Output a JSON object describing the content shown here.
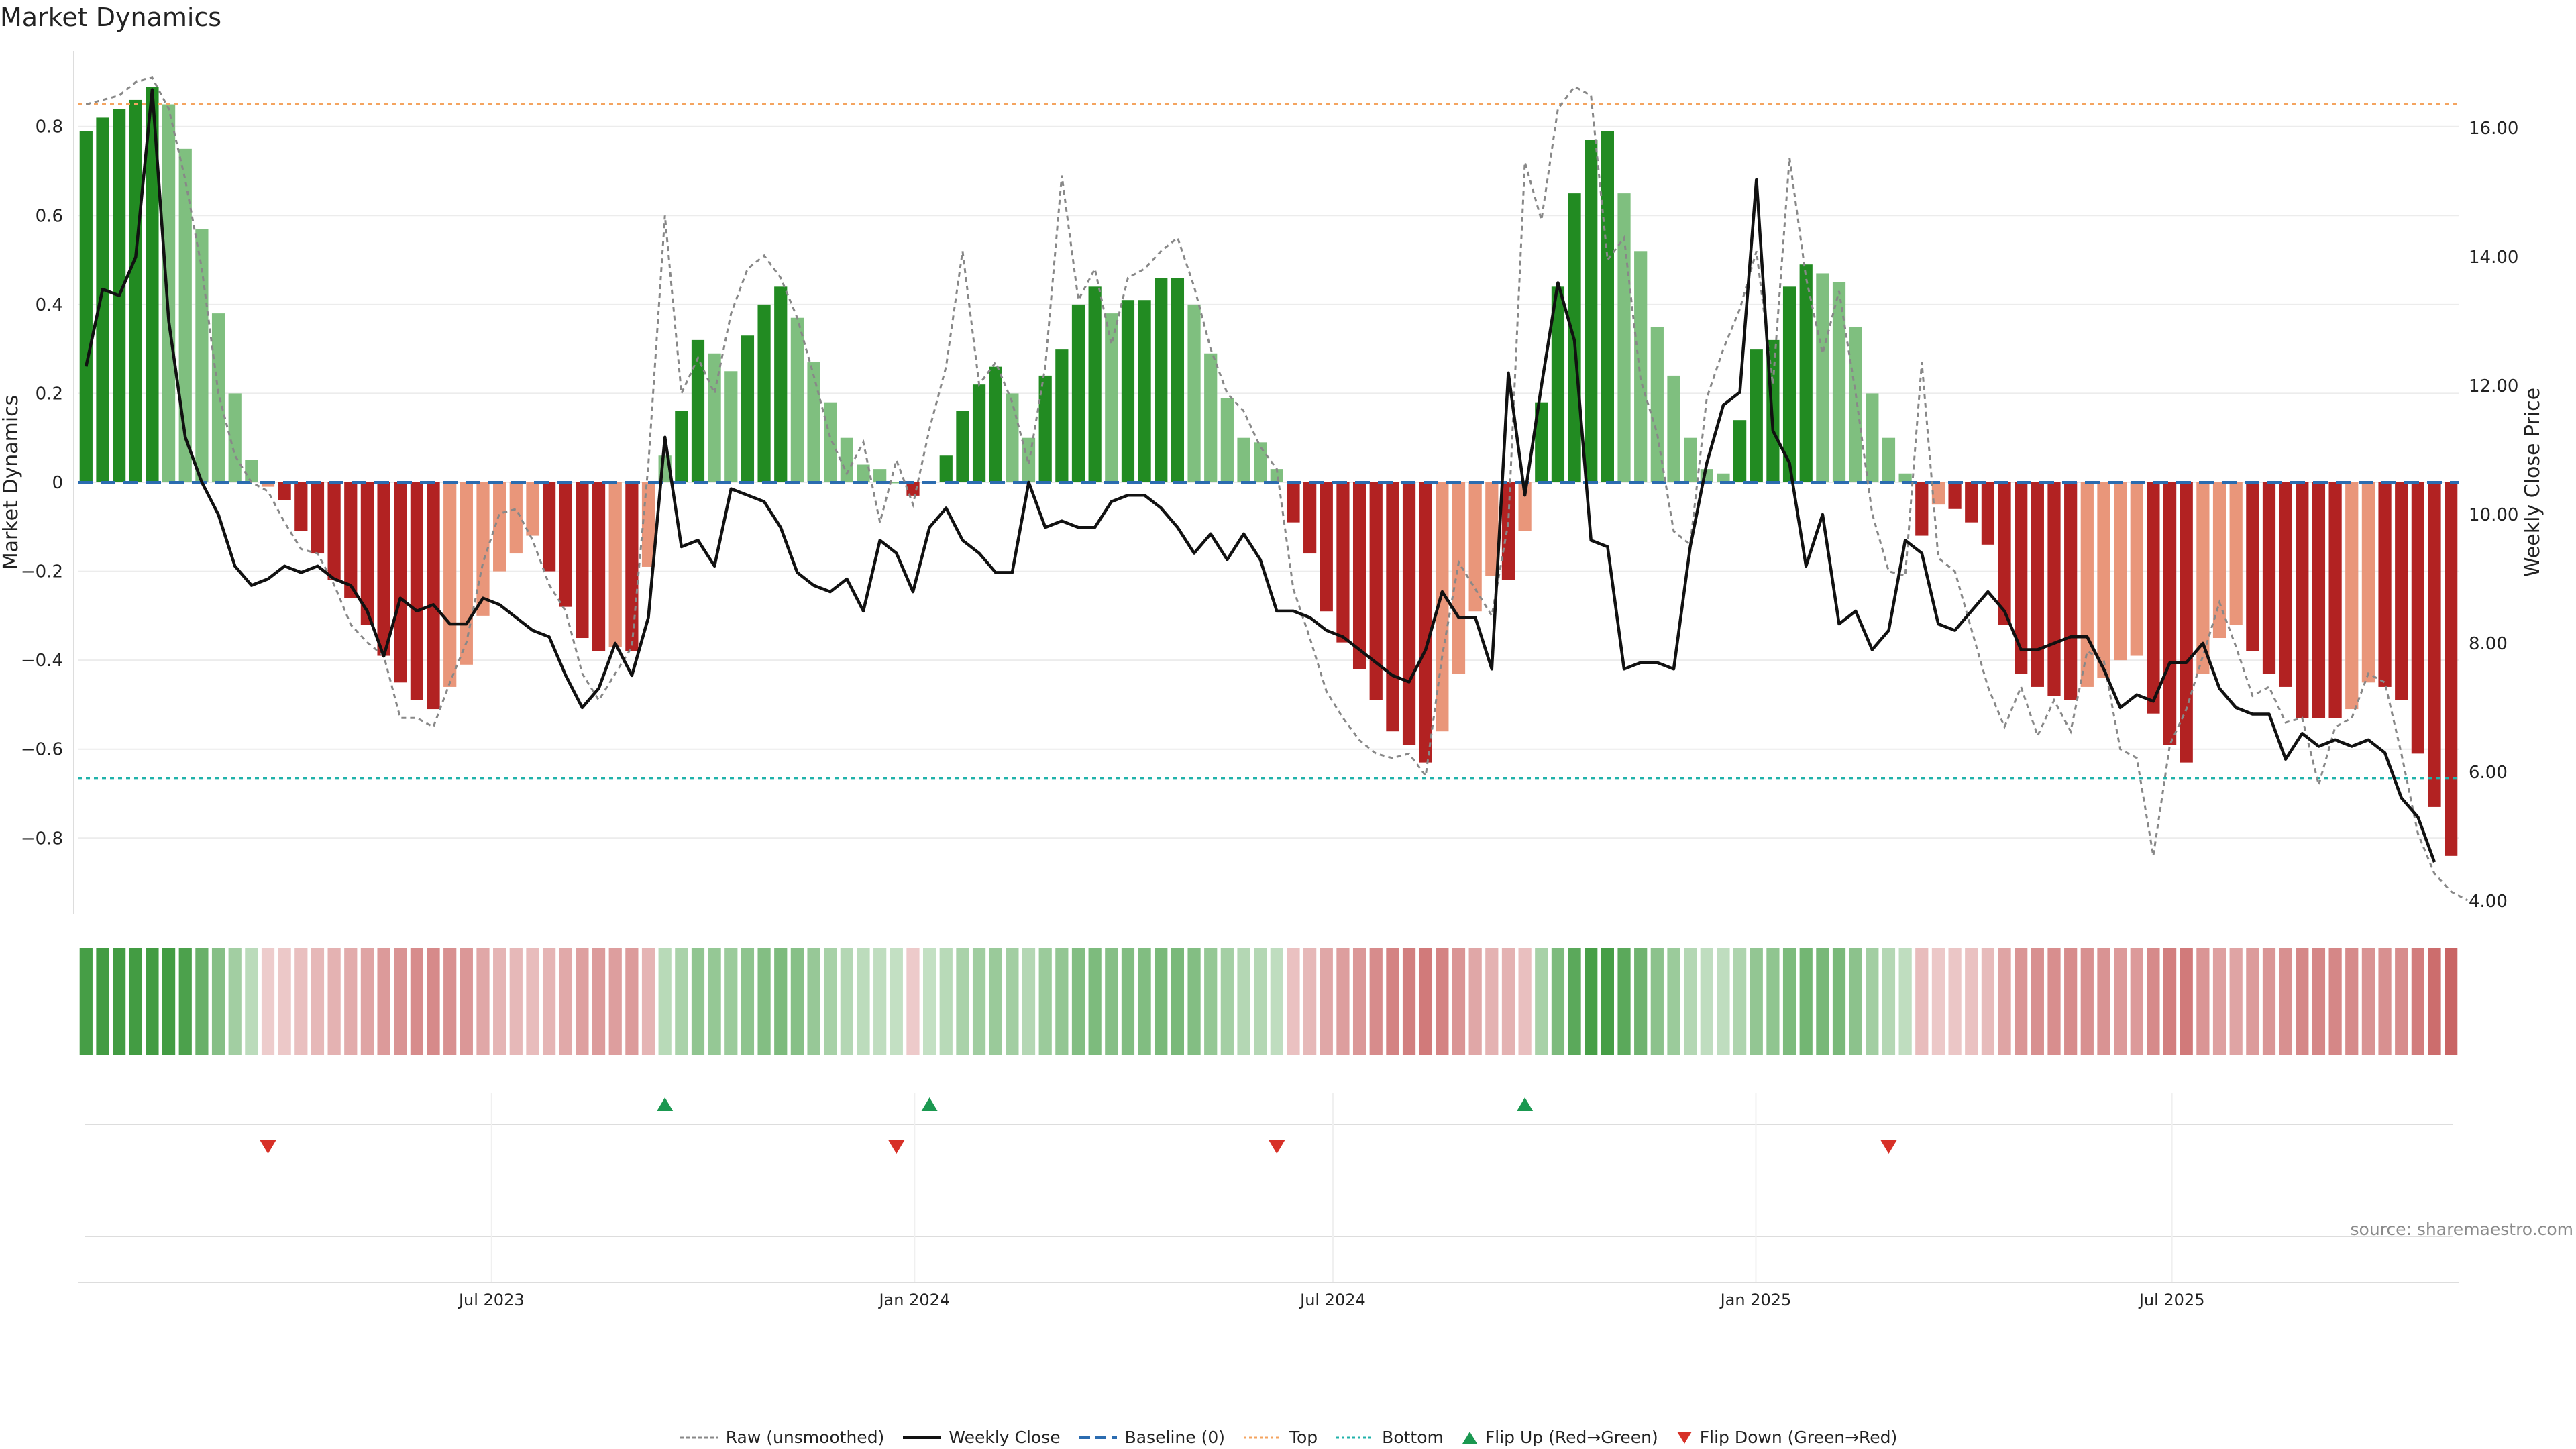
{
  "title": "Market Dynamics",
  "source_text": "source: sharemaestro.com",
  "colors": {
    "strong_green": "#228b22",
    "light_green": "#7fbf7f",
    "strong_red": "#b22222",
    "light_red": "#e9967a",
    "line": "#111111",
    "raw": "#888888",
    "baseline": "#2b6cb0",
    "top": "#f4a460",
    "bottom": "#20b2aa",
    "flip_up": "#1a9850",
    "flip_down": "#d73027"
  },
  "chart_data": {
    "type": "bar",
    "title": "Market Dynamics",
    "ylabel": "Market Dynamics",
    "y2label": "Weekly Close Price",
    "ylim": [
      -0.97,
      0.97
    ],
    "y2lim": [
      3.8,
      17.2
    ],
    "yticks": [
      {
        "v": 0.8,
        "label": "0.8"
      },
      {
        "v": 0.6,
        "label": "0.6"
      },
      {
        "v": 0.4,
        "label": "0.4"
      },
      {
        "v": 0.2,
        "label": "0.2"
      },
      {
        "v": 0,
        "label": "0"
      },
      {
        "v": -0.2,
        "label": "−0.2"
      },
      {
        "v": -0.4,
        "label": "−0.4"
      },
      {
        "v": -0.6,
        "label": "−0.6"
      },
      {
        "v": -0.8,
        "label": "−0.8"
      }
    ],
    "y2ticks": [
      {
        "v": 16,
        "label": "16.00"
      },
      {
        "v": 14,
        "label": "14.00"
      },
      {
        "v": 12,
        "label": "12.00"
      },
      {
        "v": 10,
        "label": "10.00"
      },
      {
        "v": 8,
        "label": "8.00"
      },
      {
        "v": 6,
        "label": "6.00"
      },
      {
        "v": 4,
        "label": "4.00"
      }
    ],
    "x_start": "2023-01-02",
    "x_end": "2025-11-03",
    "xticks": [
      {
        "date": "2023-07-01",
        "label": "Jul 2023"
      },
      {
        "date": "2024-01-01",
        "label": "Jan 2024"
      },
      {
        "date": "2024-07-01",
        "label": "Jul 2024"
      },
      {
        "date": "2025-01-01",
        "label": "Jan 2025"
      },
      {
        "date": "2025-07-01",
        "label": "Jul 2025"
      }
    ],
    "top_line": 0.85,
    "bottom_line": -0.665,
    "baseline": 0,
    "values": [
      0.79,
      0.82,
      0.84,
      0.86,
      0.89,
      0.85,
      0.75,
      0.57,
      0.38,
      0.2,
      0.05,
      -0.01,
      -0.04,
      -0.11,
      -0.16,
      -0.22,
      -0.26,
      -0.32,
      -0.39,
      -0.45,
      -0.49,
      -0.51,
      -0.46,
      -0.41,
      -0.3,
      -0.2,
      -0.16,
      -0.12,
      -0.2,
      -0.28,
      -0.35,
      -0.38,
      -0.37,
      -0.38,
      -0.19,
      0.06,
      0.16,
      0.32,
      0.29,
      0.25,
      0.33,
      0.4,
      0.44,
      0.37,
      0.27,
      0.18,
      0.1,
      0.04,
      0.03,
      0.0,
      -0.03,
      0.0,
      0.06,
      0.16,
      0.22,
      0.26,
      0.2,
      0.1,
      0.24,
      0.3,
      0.4,
      0.44,
      0.38,
      0.41,
      0.41,
      0.46,
      0.46,
      0.4,
      0.29,
      0.19,
      0.1,
      0.09,
      0.03,
      -0.09,
      -0.16,
      -0.29,
      -0.36,
      -0.42,
      -0.49,
      -0.56,
      -0.59,
      -0.63,
      -0.56,
      -0.43,
      -0.29,
      -0.21,
      -0.22,
      -0.11,
      0.18,
      0.44,
      0.65,
      0.77,
      0.79,
      0.65,
      0.52,
      0.35,
      0.24,
      0.1,
      0.03,
      0.02,
      0.14,
      0.3,
      0.32,
      0.44,
      0.49,
      0.47,
      0.45,
      0.35,
      0.2,
      0.1,
      0.02,
      -0.12,
      -0.05,
      -0.06,
      -0.09,
      -0.14,
      -0.32,
      -0.43,
      -0.46,
      -0.48,
      -0.49,
      -0.46,
      -0.44,
      -0.4,
      -0.39,
      -0.52,
      -0.59,
      -0.63,
      -0.43,
      -0.35,
      -0.32,
      -0.38,
      -0.43,
      -0.46,
      -0.53,
      -0.53,
      -0.53,
      -0.51,
      -0.45,
      -0.46,
      -0.49,
      -0.61,
      -0.73,
      -0.84
    ],
    "raw": [
      0.85,
      0.86,
      0.87,
      0.9,
      0.91,
      0.84,
      0.68,
      0.48,
      0.2,
      0.06,
      0.0,
      -0.02,
      -0.09,
      -0.15,
      -0.16,
      -0.23,
      -0.32,
      -0.36,
      -0.39,
      -0.53,
      -0.53,
      -0.55,
      -0.45,
      -0.36,
      -0.18,
      -0.07,
      -0.06,
      -0.13,
      -0.23,
      -0.29,
      -0.43,
      -0.49,
      -0.43,
      -0.37,
      0.04,
      0.6,
      0.2,
      0.28,
      0.2,
      0.38,
      0.48,
      0.51,
      0.46,
      0.37,
      0.24,
      0.1,
      0.02,
      0.09,
      -0.09,
      0.05,
      -0.05,
      0.12,
      0.26,
      0.52,
      0.22,
      0.27,
      0.18,
      0.04,
      0.26,
      0.69,
      0.41,
      0.48,
      0.31,
      0.46,
      0.48,
      0.52,
      0.55,
      0.44,
      0.3,
      0.2,
      0.16,
      0.08,
      0.03,
      -0.24,
      -0.35,
      -0.47,
      -0.53,
      -0.58,
      -0.61,
      -0.62,
      -0.61,
      -0.66,
      -0.39,
      -0.18,
      -0.24,
      -0.3,
      -0.09,
      0.72,
      0.59,
      0.84,
      0.89,
      0.87,
      0.5,
      0.55,
      0.23,
      0.11,
      -0.11,
      -0.14,
      0.19,
      0.3,
      0.39,
      0.52,
      0.22,
      0.73,
      0.46,
      0.29,
      0.43,
      0.2,
      -0.07,
      -0.2,
      -0.21,
      0.27,
      -0.17,
      -0.2,
      -0.33,
      -0.46,
      -0.55,
      -0.46,
      -0.57,
      -0.49,
      -0.56,
      -0.38,
      -0.4,
      -0.6,
      -0.62,
      -0.84,
      -0.59,
      -0.51,
      -0.39,
      -0.27,
      -0.37,
      -0.48,
      -0.46,
      -0.54,
      -0.53,
      -0.68,
      -0.55,
      -0.53,
      -0.43,
      -0.45,
      -0.61,
      -0.79,
      -0.88,
      -0.92,
      -0.94
    ],
    "weekly_close": [
      12.3,
      13.5,
      13.4,
      14.0,
      16.6,
      13.0,
      11.2,
      10.5,
      10.0,
      9.2,
      8.9,
      9.0,
      9.2,
      9.1,
      9.2,
      9.0,
      8.9,
      8.5,
      7.8,
      8.7,
      8.5,
      8.6,
      8.3,
      8.3,
      8.7,
      8.6,
      8.4,
      8.2,
      8.1,
      7.5,
      7.0,
      7.3,
      8.0,
      7.5,
      8.4,
      11.2,
      9.5,
      9.6,
      9.2,
      10.4,
      10.3,
      10.2,
      9.8,
      9.1,
      8.9,
      8.8,
      9.0,
      8.5,
      9.6,
      9.4,
      8.8,
      9.8,
      10.1,
      9.6,
      9.4,
      9.1,
      9.1,
      10.5,
      9.8,
      9.9,
      9.8,
      9.8,
      10.2,
      10.3,
      10.3,
      10.1,
      9.8,
      9.4,
      9.7,
      9.3,
      9.7,
      9.3,
      8.5,
      8.5,
      8.4,
      8.2,
      8.1,
      7.9,
      7.7,
      7.5,
      7.4,
      7.9,
      8.8,
      8.4,
      8.4,
      7.6,
      12.2,
      10.3,
      12.0,
      13.6,
      12.7,
      9.6,
      9.5,
      7.6,
      7.7,
      7.7,
      7.6,
      9.5,
      10.8,
      11.7,
      11.9,
      15.2,
      11.3,
      10.8,
      9.2,
      10.0,
      8.3,
      8.5,
      7.9,
      8.2,
      9.6,
      9.4,
      8.3,
      8.2,
      8.5,
      8.8,
      8.5,
      7.9,
      7.9,
      8.0,
      8.1,
      8.1,
      7.6,
      7.0,
      7.2,
      7.1,
      7.7,
      7.7,
      8.0,
      7.3,
      7.0,
      6.9,
      6.9,
      6.2,
      6.6,
      6.4,
      6.5,
      6.4,
      6.5,
      6.3,
      5.6,
      5.3,
      4.6
    ],
    "flip_up": [
      35,
      51,
      87
    ],
    "flip_down": [
      11,
      49,
      72,
      109
    ],
    "series": [
      {
        "name": "Raw (unsmoothed)"
      },
      {
        "name": "Weekly Close"
      },
      {
        "name": "Baseline (0)"
      },
      {
        "name": "Top"
      },
      {
        "name": "Bottom"
      },
      {
        "name": "Flip Up (Red→Green)"
      },
      {
        "name": "Flip Down (Green→Red)"
      }
    ]
  }
}
